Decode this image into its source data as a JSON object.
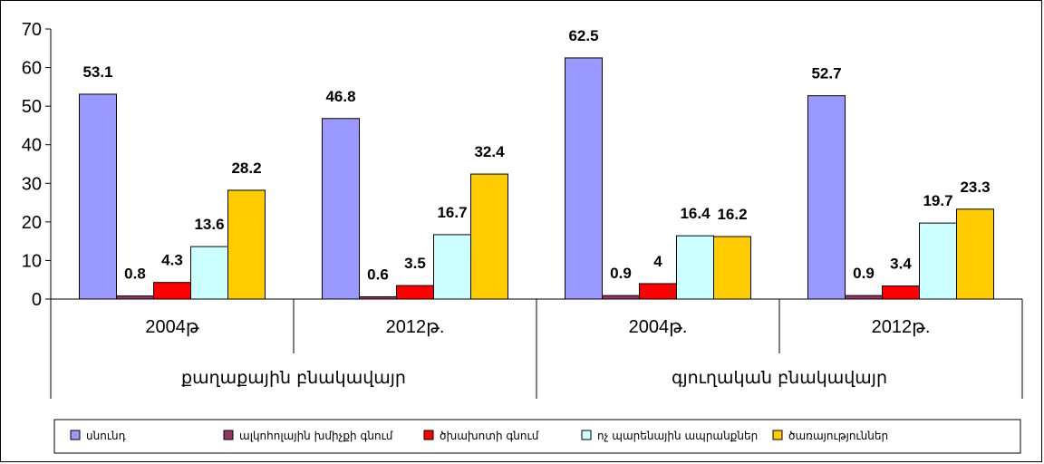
{
  "corner_text": "",
  "chart_data": {
    "type": "bar",
    "ylim": [
      0,
      70
    ],
    "yticks": [
      0,
      10,
      20,
      30,
      40,
      50,
      60,
      70
    ],
    "grid": false,
    "legend_position": "bottom",
    "categories": [
      "2004թ",
      "2012թ.",
      "2004թ.",
      "2012թ."
    ],
    "groups": [
      {
        "label": "քաղաքային բնակավայր",
        "categories": [
          0,
          1
        ]
      },
      {
        "label": "գյուղական բնակավայր",
        "categories": [
          2,
          3
        ]
      }
    ],
    "series": [
      {
        "name": "սնունդ",
        "color": "#9999ff",
        "values": [
          53.1,
          46.8,
          62.5,
          52.7
        ],
        "labels": [
          "53.1",
          "46.8",
          "62.5",
          "52.7"
        ]
      },
      {
        "name": "ալկոհոլային խմիչքի գնում",
        "color": "#993366",
        "values": [
          0.8,
          0.6,
          0.9,
          0.9
        ],
        "labels": [
          "0.8",
          "0.6",
          "0.9",
          "0.9"
        ]
      },
      {
        "name": "ծխախոտի գնում",
        "color": "#ff0000",
        "values": [
          4.3,
          3.5,
          4,
          3.4
        ],
        "labels": [
          "4.3",
          "3.5",
          "4",
          "3.4"
        ]
      },
      {
        "name": "ոչ պարենային ապրանքներ",
        "color": "#ccffff",
        "values": [
          13.6,
          16.7,
          16.4,
          19.7
        ],
        "labels": [
          "13.6",
          "16.7",
          "16.4",
          "19.7"
        ]
      },
      {
        "name": "ծառայություններ",
        "color": "#ffcc00",
        "values": [
          28.2,
          32.4,
          16.2,
          23.3
        ],
        "labels": [
          "28.2",
          "32.4",
          "16.2",
          "23.3"
        ]
      }
    ]
  }
}
